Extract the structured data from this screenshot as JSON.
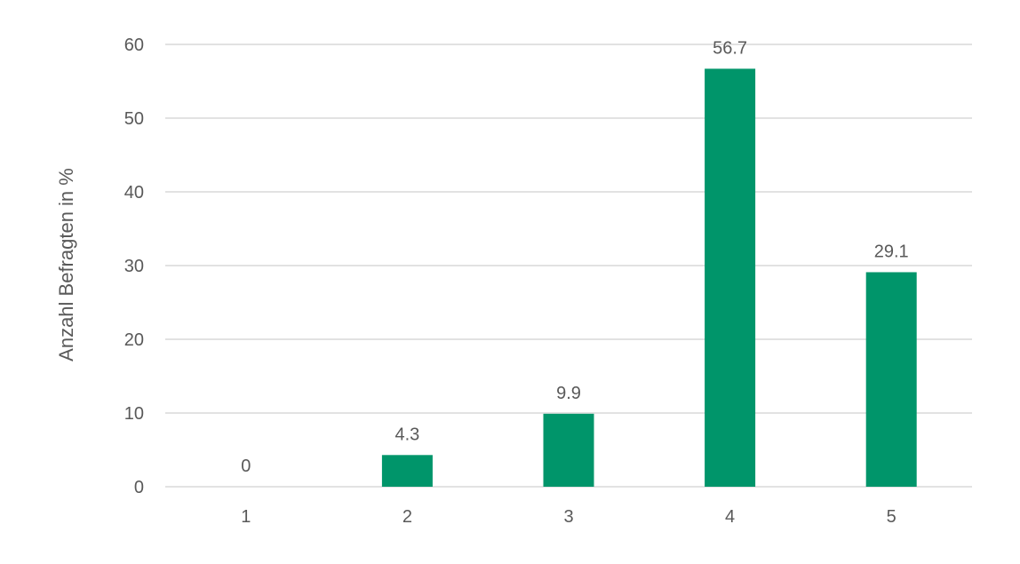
{
  "chart_data": {
    "type": "bar",
    "categories": [
      "1",
      "2",
      "3",
      "4",
      "5"
    ],
    "values": [
      0,
      4.3,
      9.9,
      56.7,
      29.1
    ],
    "data_labels": [
      "0",
      "4.3",
      "9.9",
      "56.7",
      "29.1"
    ],
    "title": "",
    "xlabel": "",
    "ylabel": "Anzahl Befragten in %",
    "ylim": [
      0,
      60
    ],
    "yticks": [
      0,
      10,
      20,
      30,
      40,
      50,
      60
    ],
    "ytick_labels": [
      "0",
      "10",
      "20",
      "30",
      "40",
      "50",
      "60"
    ],
    "grid": true,
    "legend": "none",
    "colors": {
      "bar": "#00956a",
      "grid": "#d9d9d9",
      "text": "#595959"
    }
  }
}
